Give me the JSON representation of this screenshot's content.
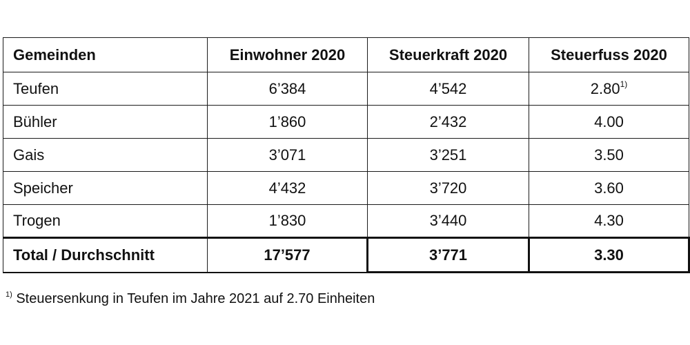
{
  "table": {
    "headers": [
      "Gemeinden",
      "Einwohner 2020",
      "Steuerkraft 2020",
      "Steuerfuss 2020"
    ],
    "rows": [
      {
        "gemeinde": "Teufen",
        "einwohner": "6’384",
        "steuerkraft": "4’542",
        "steuerfuss": "2.80",
        "steuerfuss_note": "1)"
      },
      {
        "gemeinde": "Bühler",
        "einwohner": "1’860",
        "steuerkraft": "2’432",
        "steuerfuss": "4.00"
      },
      {
        "gemeinde": "Gais",
        "einwohner": "3’071",
        "steuerkraft": "3’251",
        "steuerfuss": "3.50"
      },
      {
        "gemeinde": "Speicher",
        "einwohner": "4’432",
        "steuerkraft": "3’720",
        "steuerfuss": "3.60"
      },
      {
        "gemeinde": "Trogen",
        "einwohner": "1’830",
        "steuerkraft": "3’440",
        "steuerfuss": "4.30"
      }
    ],
    "total": {
      "label": "Total / Durchschnitt",
      "einwohner": "17’577",
      "steuerkraft": "3’771",
      "steuerfuss": "3.30"
    }
  },
  "footnote": {
    "marker": "1)",
    "text": " Steuersenkung in Teufen im Jahre 2021 auf 2.70 Einheiten"
  }
}
